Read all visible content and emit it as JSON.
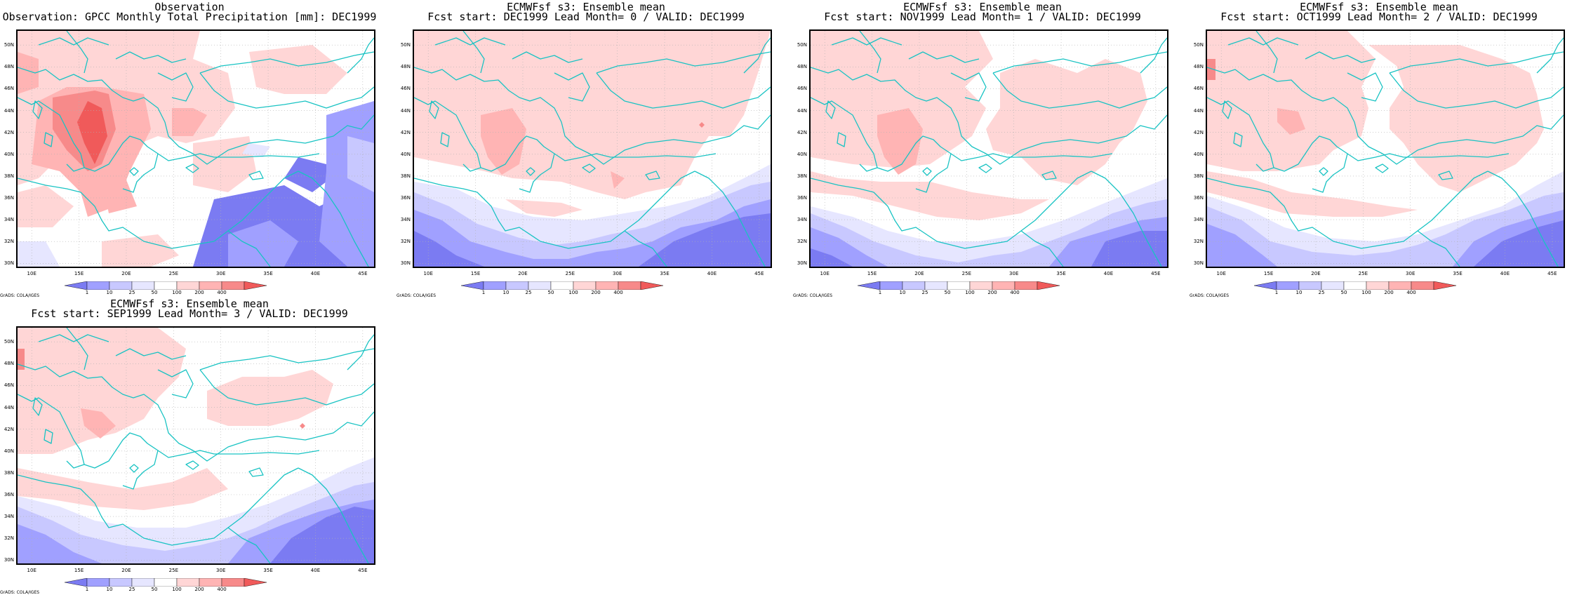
{
  "colorbar": {
    "levels": [
      "1",
      "10",
      "25",
      "50",
      "100",
      "200",
      "400"
    ],
    "colors": [
      "#7b7bf2",
      "#a0a0ff",
      "#c8c8ff",
      "#e6e6ff",
      "#ffffff",
      "#ffd6d6",
      "#ffb4b4",
      "#f78a8a",
      "#f05a5a"
    ]
  },
  "axes": {
    "lat_labels": [
      "50N",
      "48N",
      "46N",
      "44N",
      "42N",
      "40N",
      "38N",
      "36N",
      "34N",
      "32N",
      "30N"
    ],
    "lon_labels": [
      "10E",
      "15E",
      "20E",
      "25E",
      "30E",
      "35E",
      "40E",
      "45E"
    ]
  },
  "credit": "GrADS: COLA/IGES",
  "panels": [
    {
      "line1": "Observation",
      "line2": "Observation: GPCC Monthly Total Precipitation [mm]: DEC1999",
      "pattern": "obs"
    },
    {
      "line1": "ECMWFsf s3: Ensemble mean",
      "line2": "Fcst start: DEC1999  Lead Month= 0 / VALID: DEC1999",
      "pattern": "lead0"
    },
    {
      "line1": "ECMWFsf s3: Ensemble mean",
      "line2": "Fcst start: NOV1999  Lead Month= 1 / VALID: DEC1999",
      "pattern": "lead1"
    },
    {
      "line1": "ECMWFsf s3: Ensemble mean",
      "line2": "Fcst start: OCT1999  Lead Month= 2 / VALID: DEC1999",
      "pattern": "lead2"
    },
    {
      "line1": "ECMWFsf s3: Ensemble mean",
      "line2": "Fcst start: SEP1999  Lead Month= 3 / VALID: DEC1999",
      "pattern": "lead3"
    }
  ]
}
